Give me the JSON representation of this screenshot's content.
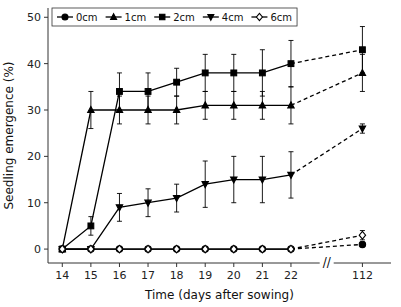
{
  "chart_data": {
    "type": "line",
    "categories": [
      "14",
      "15",
      "16",
      "17",
      "18",
      "19",
      "20",
      "21",
      "22",
      "112"
    ],
    "series": [
      {
        "name": "0cm",
        "marker": "circle",
        "values": [
          0,
          0,
          0,
          0,
          0,
          0,
          0,
          0,
          0,
          1.0
        ],
        "yerr": [
          0,
          0,
          0,
          0,
          0,
          0,
          0,
          0,
          0,
          0.5
        ]
      },
      {
        "name": "1cm",
        "marker": "triangle-up",
        "values": [
          0,
          30,
          30,
          30,
          30,
          31,
          31,
          31,
          31,
          38
        ],
        "yerr": [
          0,
          4,
          3,
          3,
          3,
          3,
          3,
          3,
          4,
          4
        ]
      },
      {
        "name": "2cm",
        "marker": "square",
        "values": [
          0,
          5,
          34,
          34,
          36,
          38,
          38,
          38,
          40,
          43
        ],
        "yerr": [
          0,
          2,
          4,
          4,
          3,
          4,
          4,
          5,
          5,
          5
        ]
      },
      {
        "name": "4cm",
        "marker": "triangle-down",
        "values": [
          0,
          0,
          9,
          10,
          11,
          14,
          15,
          15,
          16,
          26
        ],
        "yerr": [
          0,
          0,
          3,
          3,
          3,
          5,
          5,
          5,
          5,
          1
        ]
      },
      {
        "name": "6cm",
        "marker": "diamond-open",
        "values": [
          0,
          0,
          0,
          0,
          0,
          0,
          0,
          0,
          0,
          3.0
        ],
        "yerr": [
          0,
          0,
          0,
          0,
          0,
          0,
          0,
          0,
          0,
          1.0
        ]
      }
    ],
    "color": "black",
    "xlabel": "Time (days after sowing)",
    "ylabel": "Seedling emergence (%)",
    "ylim": [
      -3,
      52
    ],
    "yticks": [
      0,
      10,
      20,
      30,
      40,
      50
    ],
    "annotations": [
      {
        "text": "//"
      }
    ],
    "legend": "upper left",
    "grid": false
  }
}
